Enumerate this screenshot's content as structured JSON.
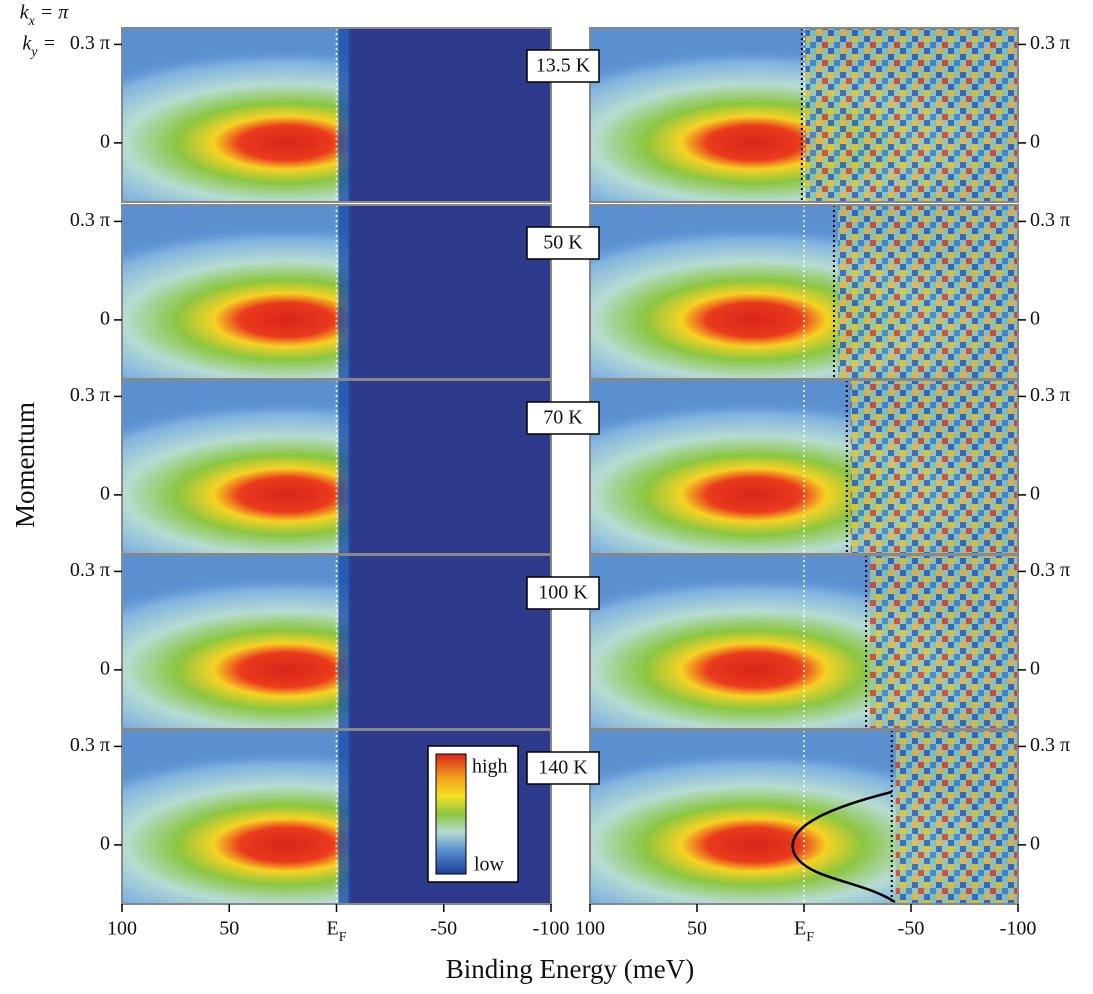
{
  "chart_data": {
    "type": "heatmap",
    "kx_label": "kx = π",
    "ky_label": "ky =",
    "y_label": "Momentum",
    "x_label": "Binding Energy (meV)",
    "xlim": [
      100,
      -100
    ],
    "xticks": [
      100,
      50,
      {
        "value": 0,
        "label": "EF"
      },
      -50,
      -100
    ],
    "ylim": [
      -0.18,
      0.35
    ],
    "yticks": [
      {
        "value": 0.3,
        "label": "0.3 π"
      },
      0
    ],
    "colorbar": {
      "high": "high",
      "low": "low"
    },
    "panels": [
      {
        "temperature": "13.5 K",
        "edge": 1
      },
      {
        "temperature": "50 K",
        "edge": -14
      },
      {
        "temperature": "70 K",
        "edge": -20
      },
      {
        "temperature": "100 K",
        "edge": -29
      },
      {
        "temperature": "140 K",
        "edge": -41
      }
    ]
  }
}
